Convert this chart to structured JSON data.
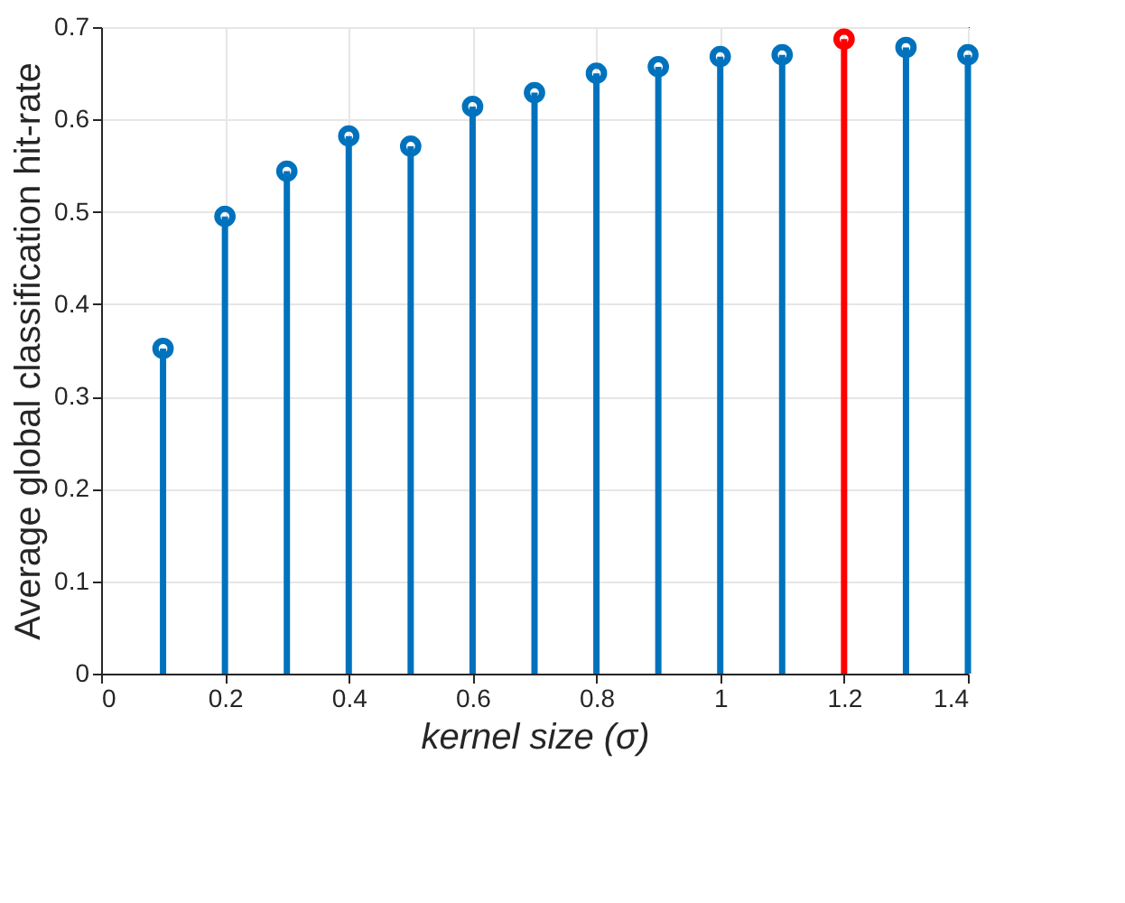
{
  "chart_data": {
    "type": "lollipop",
    "xlabel": "kernel size (σ)",
    "ylabel": "Average global classification hit-rate",
    "x": [
      0.1,
      0.2,
      0.3,
      0.4,
      0.5,
      0.6,
      0.7,
      0.8,
      0.9,
      1.0,
      1.1,
      1.2,
      1.3,
      1.4
    ],
    "values": [
      0.352,
      0.495,
      0.544,
      0.582,
      0.571,
      0.614,
      0.629,
      0.65,
      0.657,
      0.668,
      0.67,
      0.687,
      0.678,
      0.67
    ],
    "colors": [
      "#0072bd",
      "#0072bd",
      "#0072bd",
      "#0072bd",
      "#0072bd",
      "#0072bd",
      "#0072bd",
      "#0072bd",
      "#0072bd",
      "#0072bd",
      "#0072bd",
      "#ff0000",
      "#0072bd",
      "#0072bd"
    ],
    "xlim": [
      0,
      1.4
    ],
    "xticks": [
      0,
      0.2,
      0.4,
      0.6,
      0.8,
      1,
      1.2,
      1.4
    ],
    "ylim": [
      0,
      0.7
    ],
    "yticks": [
      0,
      0.1,
      0.2,
      0.3,
      0.4,
      0.5,
      0.6,
      0.7
    ],
    "grid": true,
    "marker": "circle"
  }
}
